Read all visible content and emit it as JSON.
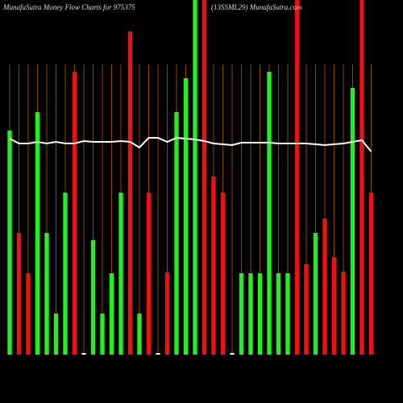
{
  "chart_data": {
    "type": "bar",
    "title": "MunafaSutra  Money Flow  Charts for 975375",
    "subtitle": "(13SSML29) MunafaSutra.com",
    "categories": [
      null,
      null,
      null,
      null,
      null,
      null,
      null,
      null,
      null,
      null,
      null,
      null,
      null,
      null,
      null,
      null,
      null,
      null,
      null,
      null,
      null,
      null,
      null,
      null,
      null,
      null,
      null,
      null,
      null,
      null,
      null,
      null,
      null,
      null,
      null,
      null,
      null,
      null,
      null,
      null
    ],
    "values": [
      278,
      151,
      101,
      301,
      151,
      51,
      201,
      351,
      2,
      142,
      51,
      101,
      201,
      401,
      51,
      201,
      2,
      102,
      301,
      343,
      460,
      460,
      221,
      201,
      2,
      101,
      101,
      101,
      351,
      101,
      101,
      460,
      112,
      151,
      169,
      121,
      103,
      331,
      460,
      201
    ],
    "colors": [
      "#22ee22",
      "#ee1111",
      "#ee1111",
      "#22ee22",
      "#22ee22",
      "#22ee22",
      "#22ee22",
      "#ee1111",
      "#ffffff",
      "#22ee22",
      "#22ee22",
      "#22ee22",
      "#22ee22",
      "#ee1111",
      "#22ee22",
      "#ee1111",
      "#ffffff",
      "#ee1111",
      "#22ee22",
      "#22ee22",
      "#22ee22",
      "#ee1111",
      "#ee1111",
      "#ee1111",
      "#ffffff",
      "#22ee22",
      "#22ee22",
      "#22ee22",
      "#22ee22",
      "#22ee22",
      "#22ee22",
      "#ee1111",
      "#ee1111",
      "#22ee22",
      "#ee1111",
      "#ee1111",
      "#ee1111",
      "#22ee22",
      "#ee1111",
      "#ee1111"
    ],
    "line": {
      "color": "#ffffff",
      "values": [
        268,
        262,
        262,
        264,
        262,
        264,
        262,
        262,
        265,
        264,
        264,
        264,
        265,
        264,
        257,
        269,
        269,
        264,
        269,
        268,
        267,
        265,
        262,
        261,
        260,
        263,
        263,
        263,
        263,
        262,
        262,
        262,
        262,
        261,
        260,
        261,
        262,
        264,
        266,
        252
      ]
    },
    "ylim": [
      0,
      440
    ],
    "grid": true,
    "grid_color": "#8a4a00"
  }
}
